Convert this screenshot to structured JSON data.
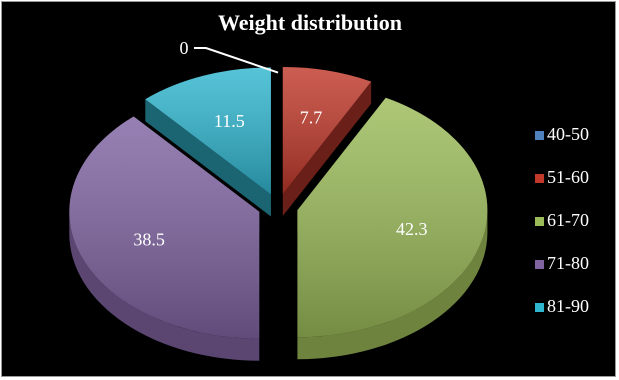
{
  "chart_data": {
    "type": "pie",
    "title": "Weight distribution",
    "categories": [
      "40-50",
      "51-60",
      "61-70",
      "71-80",
      "81-90"
    ],
    "values": [
      0,
      7.7,
      42.3,
      38.5,
      11.5
    ],
    "data_labels": [
      "0",
      "7.7",
      "42.3",
      "38.5",
      "11.5"
    ],
    "colors": [
      "#4f81bd",
      "#c0392b",
      "#9bbb59",
      "#8064a2",
      "#31b6cf"
    ],
    "exploded": true,
    "three_d": true,
    "legend_position": "right",
    "background": "#000000"
  }
}
